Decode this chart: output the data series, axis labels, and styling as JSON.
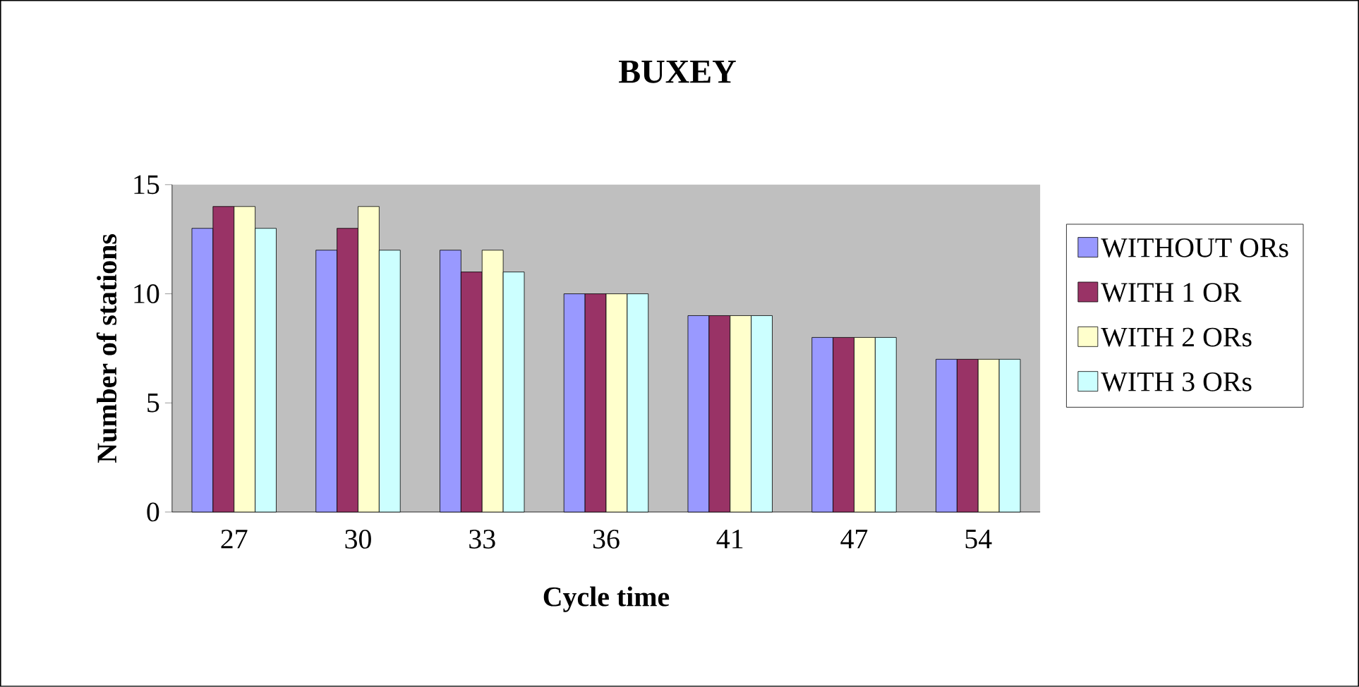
{
  "chart_data": {
    "type": "bar",
    "title": "BUXEY",
    "xlabel": "Cycle time",
    "ylabel": "Number of stations",
    "categories": [
      "27",
      "30",
      "33",
      "36",
      "41",
      "47",
      "54"
    ],
    "series": [
      {
        "name": "WITHOUT ORs",
        "color": "#9999ff",
        "values": [
          13,
          12,
          12,
          10,
          9,
          8,
          7
        ]
      },
      {
        "name": "WITH 1 OR",
        "color": "#993366",
        "values": [
          14,
          13,
          11,
          10,
          9,
          8,
          7
        ]
      },
      {
        "name": "WITH 2 ORs",
        "color": "#ffffcc",
        "values": [
          14,
          14,
          12,
          10,
          9,
          8,
          7
        ]
      },
      {
        "name": "WITH 3 ORs",
        "color": "#ccffff",
        "values": [
          13,
          12,
          11,
          10,
          9,
          8,
          7
        ]
      }
    ],
    "ylim": [
      0,
      15
    ],
    "yticks": [
      0,
      5,
      10,
      15
    ],
    "grid": false,
    "legend": "right"
  }
}
